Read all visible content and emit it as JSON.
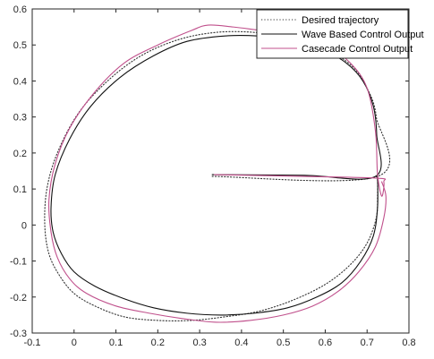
{
  "chart_data": {
    "type": "line",
    "title": "",
    "xlabel": "",
    "ylabel": "",
    "xlim": [
      -0.1,
      0.8
    ],
    "ylim": [
      -0.3,
      0.6
    ],
    "xticks": [
      "-0.1",
      "0",
      "0.1",
      "0.2",
      "0.3",
      "0.4",
      "0.5",
      "0.6",
      "0.7",
      "0.8"
    ],
    "yticks": [
      "-0.3",
      "-0.2",
      "-0.1",
      "0",
      "0.1",
      "0.2",
      "0.3",
      "0.4",
      "0.5",
      "0.6"
    ],
    "grid": false,
    "legend_position": "top-right",
    "series": [
      {
        "name": "Desired trajectory",
        "color": "#333333",
        "style": "dotted",
        "x": [
          0.33,
          0.725,
          0.722,
          0.7,
          0.665,
          0.6,
          0.52,
          0.43,
          0.34,
          0.25,
          0.16,
          0.08,
          0.01,
          -0.04,
          -0.065,
          -0.07,
          -0.06,
          -0.035,
          0.0,
          0.05,
          0.12,
          0.2,
          0.28,
          0.36,
          0.44,
          0.52,
          0.6,
          0.66,
          0.7,
          0.722,
          0.725,
          0.725
        ],
        "y": [
          0.135,
          0.135,
          0.3,
          0.38,
          0.44,
          0.49,
          0.52,
          0.535,
          0.535,
          0.515,
          0.47,
          0.4,
          0.31,
          0.2,
          0.1,
          0.0,
          -0.08,
          -0.14,
          -0.19,
          -0.225,
          -0.255,
          -0.265,
          -0.265,
          -0.255,
          -0.24,
          -0.21,
          -0.165,
          -0.11,
          -0.05,
          0.02,
          0.08,
          0.135
        ]
      },
      {
        "name": "Wave Based Control Output",
        "color": "#111111",
        "style": "solid",
        "x": [
          0.33,
          0.55,
          0.72,
          0.723,
          0.715,
          0.69,
          0.65,
          0.59,
          0.52,
          0.44,
          0.36,
          0.27,
          0.19,
          0.11,
          0.04,
          -0.01,
          -0.045,
          -0.055,
          -0.05,
          -0.03,
          0.0,
          0.05,
          0.12,
          0.19,
          0.27,
          0.35,
          0.43,
          0.51,
          0.58,
          0.64,
          0.685,
          0.715,
          0.725,
          0.725
        ],
        "y": [
          0.14,
          0.138,
          0.135,
          0.25,
          0.33,
          0.4,
          0.45,
          0.49,
          0.515,
          0.525,
          0.525,
          0.51,
          0.47,
          0.41,
          0.33,
          0.24,
          0.14,
          0.05,
          -0.02,
          -0.08,
          -0.13,
          -0.17,
          -0.205,
          -0.23,
          -0.245,
          -0.25,
          -0.245,
          -0.23,
          -0.2,
          -0.16,
          -0.1,
          -0.03,
          0.05,
          0.135
        ]
      },
      {
        "name": "Casecade Control Output",
        "color": "#c0508c",
        "style": "solid",
        "x": [
          0.335,
          0.55,
          0.725,
          0.74,
          0.735,
          0.725,
          0.72,
          0.7,
          0.66,
          0.6,
          0.53,
          0.45,
          0.38,
          0.32,
          0.28,
          0.2,
          0.12,
          0.05,
          -0.01,
          -0.045,
          -0.06,
          -0.055,
          -0.04,
          -0.01,
          0.03,
          0.1,
          0.18,
          0.26,
          0.34,
          0.42,
          0.5,
          0.57,
          0.63,
          0.68,
          0.72,
          0.74,
          0.745,
          0.735
        ],
        "y": [
          0.14,
          0.135,
          0.13,
          0.12,
          0.08,
          0.14,
          0.26,
          0.38,
          0.45,
          0.5,
          0.53,
          0.54,
          0.55,
          0.555,
          0.54,
          0.5,
          0.45,
          0.37,
          0.27,
          0.17,
          0.07,
          -0.02,
          -0.09,
          -0.15,
          -0.19,
          -0.225,
          -0.245,
          -0.26,
          -0.27,
          -0.265,
          -0.25,
          -0.225,
          -0.185,
          -0.13,
          -0.06,
          0.02,
          0.08,
          0.12
        ]
      }
    ]
  }
}
